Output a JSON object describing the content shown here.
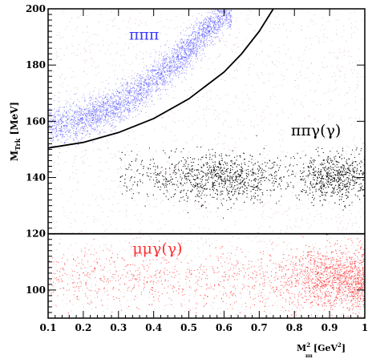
{
  "chart_data": {
    "type": "scatter",
    "title": "",
    "xlabel": "M²ππ [GeV²]",
    "xlabel_parts": {
      "base": "M",
      "sup": "2",
      "sub": "ππ",
      "unit": "[GeV",
      "unit_sup": "2",
      "unit_close": "]"
    },
    "ylabel": "MTrk [MeV]",
    "ylabel_parts": {
      "base": "M",
      "sub": "Trk",
      "unit": "[MeV]"
    },
    "xlim": [
      0.1,
      1.0
    ],
    "ylim": [
      90,
      200
    ],
    "x_ticks": [
      0.1,
      0.2,
      0.3,
      0.4,
      0.5,
      0.6,
      0.7,
      0.8,
      0.9,
      1.0
    ],
    "x_tick_labels": [
      "0.1",
      "0.2",
      "0.3",
      "0.4",
      "0.5",
      "0.6",
      "0.7",
      "0.8",
      "0.9",
      "1"
    ],
    "y_ticks": [
      100,
      120,
      140,
      160,
      180,
      200
    ],
    "y_tick_labels": [
      "100",
      "120",
      "140",
      "160",
      "180",
      "200"
    ],
    "grid": false,
    "regions": [
      {
        "name": "πππ",
        "label": "πππ",
        "color": "#3b3bff",
        "label_at": [
          0.33,
          189
        ],
        "band_center": [
          [
            0.1,
            158
          ],
          [
            0.2,
            161
          ],
          [
            0.3,
            166
          ],
          [
            0.35,
            170
          ],
          [
            0.4,
            175
          ],
          [
            0.45,
            180
          ],
          [
            0.5,
            186
          ],
          [
            0.55,
            192
          ],
          [
            0.6,
            199
          ]
        ],
        "band_width": 6
      },
      {
        "name": "ππγ(γ)",
        "label": "ππγ(γ)",
        "color": "#000000",
        "label_at": [
          0.79,
          155
        ],
        "cluster_x": [
          0.3,
          1.0
        ],
        "cluster_center_y": 140,
        "cluster_peak_x": [
          0.55,
          0.95
        ]
      },
      {
        "name": "μμγ(γ)",
        "label": "μμγ(γ)",
        "color": "#ff3030",
        "label_at": [
          0.34,
          113
        ],
        "cluster_x": [
          0.1,
          1.0
        ],
        "cluster_center_y": 104,
        "cluster_peak_x": [
          0.95,
          1.0
        ]
      }
    ],
    "cut_lines": [
      {
        "type": "curve",
        "points": [
          [
            0.1,
            150.5
          ],
          [
            0.2,
            152.5
          ],
          [
            0.3,
            156
          ],
          [
            0.4,
            161
          ],
          [
            0.5,
            168
          ],
          [
            0.6,
            177.5
          ],
          [
            0.65,
            184
          ],
          [
            0.7,
            192
          ],
          [
            0.74,
            200
          ]
        ]
      },
      {
        "type": "horizontal",
        "y": 120
      }
    ],
    "background_color": "#c080a0"
  }
}
